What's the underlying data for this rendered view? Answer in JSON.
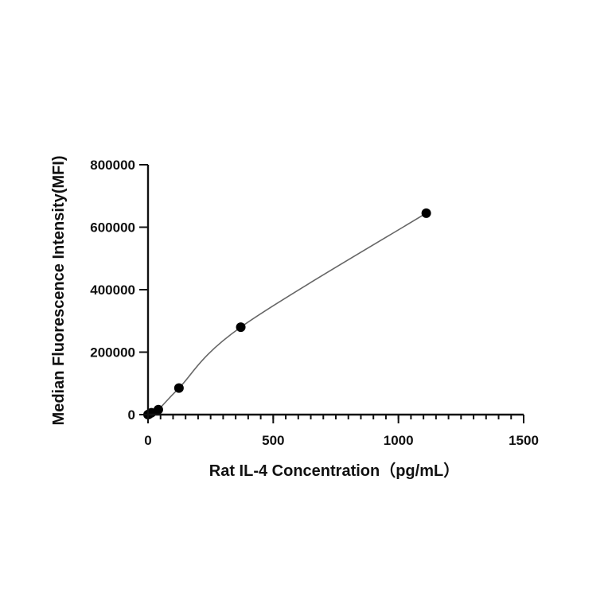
{
  "chart_data": {
    "type": "scatter",
    "title": "",
    "xlabel": "Rat IL-4 Concentration（pg/mL）",
    "ylabel": "Median Fluorescence Intensity(MFI)",
    "xlim": [
      0,
      1500
    ],
    "ylim": [
      0,
      800000
    ],
    "x_ticks": [
      0,
      500,
      1000,
      1500
    ],
    "y_ticks": [
      0,
      200000,
      400000,
      600000,
      800000
    ],
    "x_minor_step": 50,
    "x_tick_labels": [
      "0",
      "500",
      "1000",
      "1500"
    ],
    "y_tick_labels": [
      "0",
      "200000",
      "400000",
      "600000",
      "800000"
    ],
    "grid": false,
    "legend": "none",
    "series": [
      {
        "x": [
          0,
          4.6,
          13.7,
          41.2,
          123.5,
          370.4,
          1111.1
        ],
        "y": [
          0,
          2000,
          6000,
          16000,
          85000,
          280000,
          645000
        ],
        "fit_curve": true
      }
    ],
    "colors": {
      "points": "#000000",
      "fit_line": "#666666",
      "axes": "#111111"
    }
  }
}
